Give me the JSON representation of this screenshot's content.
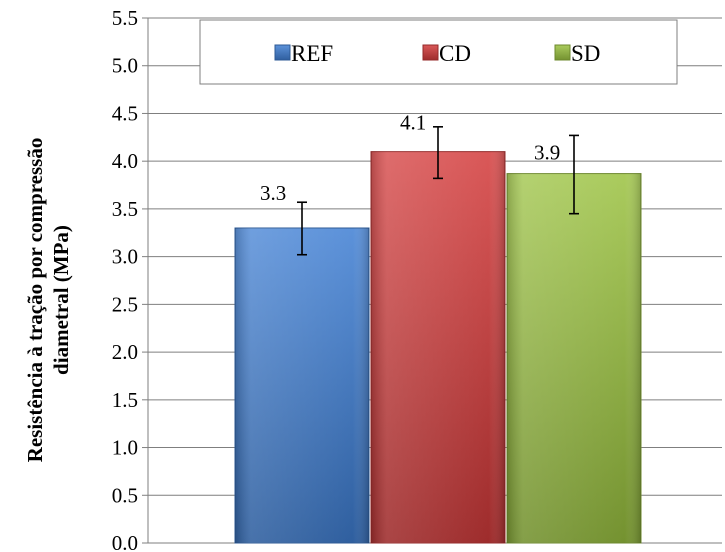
{
  "chart_data": {
    "type": "bar",
    "title": "",
    "ylabel_lines": [
      "Resistência à tração por compressão",
      "diametral (MPa)"
    ],
    "ylim": [
      0,
      5.5
    ],
    "yticks": [
      "0.0",
      "0.5",
      "1.0",
      "1.5",
      "2.0",
      "2.5",
      "3.0",
      "3.5",
      "4.0",
      "4.5",
      "5.0",
      "5.5"
    ],
    "grid": true,
    "legend_position": "top",
    "series": [
      {
        "name": "REF",
        "value": 3.3,
        "label": "3.3",
        "error": [
          3.02,
          3.57
        ],
        "color": "#3f7fd4"
      },
      {
        "name": "CD",
        "value": 4.1,
        "label": "4.1",
        "error": [
          3.82,
          4.36
        ],
        "color": "#d33b3b"
      },
      {
        "name": "SD",
        "value": 3.87,
        "label": "3.9",
        "error": [
          3.45,
          4.27
        ],
        "color": "#9bc240"
      }
    ]
  }
}
